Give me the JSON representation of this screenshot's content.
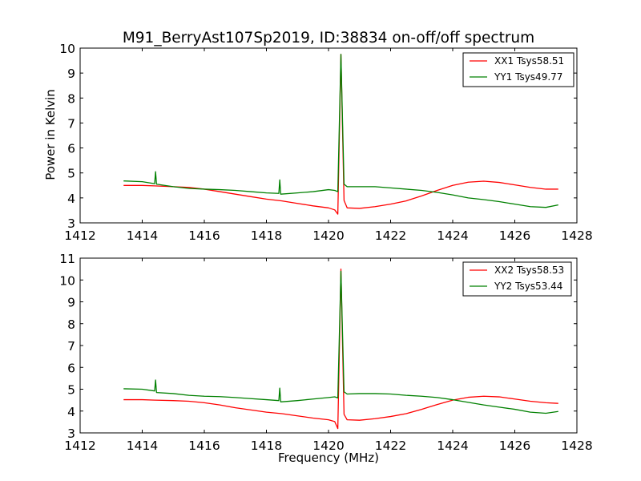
{
  "title": "M91_BerryAst107Sp2019, ID:38834 on-off/off spectrum",
  "ylabel": "Power in Kelvin",
  "chart_data": [
    {
      "type": "line",
      "xlabel": "",
      "ylabel": "Power in Kelvin",
      "xlim": [
        1412,
        1428
      ],
      "ylim": [
        3,
        10
      ],
      "xticks": [
        1412,
        1414,
        1416,
        1418,
        1420,
        1422,
        1424,
        1426,
        1428
      ],
      "yticks": [
        3,
        4,
        5,
        6,
        7,
        8,
        9,
        10
      ],
      "legend": "top-right",
      "series": [
        {
          "name": "XX1 Tsys58.51",
          "color": "#ff0000",
          "x": [
            1413.4,
            1414.0,
            1414.4,
            1415.0,
            1415.5,
            1416.0,
            1416.5,
            1417.0,
            1417.5,
            1418.0,
            1418.5,
            1419.0,
            1419.5,
            1420.0,
            1420.2,
            1420.3,
            1420.4,
            1420.5,
            1420.6,
            1421.0,
            1421.5,
            1422.0,
            1422.5,
            1423.0,
            1423.5,
            1424.0,
            1424.5,
            1425.0,
            1425.5,
            1426.0,
            1426.5,
            1427.0,
            1427.4
          ],
          "values": [
            4.5,
            4.5,
            4.48,
            4.45,
            4.42,
            4.35,
            4.25,
            4.15,
            4.05,
            3.95,
            3.88,
            3.78,
            3.68,
            3.6,
            3.52,
            3.35,
            9.75,
            3.9,
            3.6,
            3.58,
            3.65,
            3.75,
            3.88,
            4.08,
            4.3,
            4.5,
            4.63,
            4.67,
            4.62,
            4.52,
            4.42,
            4.35,
            4.35
          ]
        },
        {
          "name": "YY1 Tsys49.77",
          "color": "#008000",
          "x": [
            1413.4,
            1414.0,
            1414.4,
            1414.43,
            1414.46,
            1415.0,
            1415.5,
            1416.0,
            1416.5,
            1417.0,
            1417.5,
            1418.0,
            1418.4,
            1418.43,
            1418.46,
            1419.0,
            1419.5,
            1420.0,
            1420.2,
            1420.3,
            1420.4,
            1420.5,
            1420.6,
            1421.0,
            1421.5,
            1422.0,
            1422.5,
            1423.0,
            1423.5,
            1424.0,
            1424.5,
            1425.0,
            1425.5,
            1426.0,
            1426.5,
            1427.0,
            1427.4
          ],
          "values": [
            4.68,
            4.65,
            4.57,
            5.05,
            4.55,
            4.45,
            4.38,
            4.35,
            4.33,
            4.3,
            4.25,
            4.2,
            4.18,
            4.72,
            4.15,
            4.2,
            4.25,
            4.33,
            4.3,
            4.25,
            9.75,
            4.55,
            4.45,
            4.45,
            4.45,
            4.4,
            4.35,
            4.3,
            4.22,
            4.12,
            4.0,
            3.93,
            3.85,
            3.75,
            3.65,
            3.62,
            3.72
          ]
        }
      ]
    },
    {
      "type": "line",
      "xlabel": "Frequency (MHz)",
      "ylabel": "",
      "xlim": [
        1412,
        1428
      ],
      "ylim": [
        3,
        11
      ],
      "xticks": [
        1412,
        1414,
        1416,
        1418,
        1420,
        1422,
        1424,
        1426,
        1428
      ],
      "yticks": [
        3,
        4,
        5,
        6,
        7,
        8,
        9,
        10,
        11
      ],
      "legend": "top-right",
      "series": [
        {
          "name": "XX2 Tsys58.53",
          "color": "#ff0000",
          "x": [
            1413.4,
            1414.0,
            1414.4,
            1415.0,
            1415.5,
            1416.0,
            1416.5,
            1417.0,
            1417.5,
            1418.0,
            1418.5,
            1419.0,
            1419.5,
            1420.0,
            1420.2,
            1420.3,
            1420.4,
            1420.5,
            1420.6,
            1421.0,
            1421.5,
            1422.0,
            1422.5,
            1423.0,
            1423.5,
            1424.0,
            1424.5,
            1425.0,
            1425.5,
            1426.0,
            1426.5,
            1427.0,
            1427.4
          ],
          "values": [
            4.52,
            4.52,
            4.5,
            4.48,
            4.45,
            4.38,
            4.28,
            4.15,
            4.05,
            3.95,
            3.88,
            3.78,
            3.68,
            3.6,
            3.52,
            3.2,
            10.5,
            3.85,
            3.6,
            3.58,
            3.65,
            3.75,
            3.88,
            4.08,
            4.3,
            4.5,
            4.63,
            4.68,
            4.65,
            4.55,
            4.45,
            4.38,
            4.35
          ]
        },
        {
          "name": "YY2 Tsys53.44",
          "color": "#008000",
          "x": [
            1413.4,
            1414.0,
            1414.4,
            1414.43,
            1414.46,
            1415.0,
            1415.5,
            1416.0,
            1416.5,
            1417.0,
            1417.5,
            1418.0,
            1418.4,
            1418.43,
            1418.46,
            1419.0,
            1419.5,
            1420.0,
            1420.2,
            1420.3,
            1420.4,
            1420.5,
            1420.6,
            1421.0,
            1421.5,
            1422.0,
            1422.5,
            1423.0,
            1423.5,
            1424.0,
            1424.5,
            1425.0,
            1425.5,
            1426.0,
            1426.5,
            1427.0,
            1427.4
          ],
          "values": [
            5.02,
            5.0,
            4.92,
            5.42,
            4.85,
            4.8,
            4.72,
            4.68,
            4.66,
            4.62,
            4.57,
            4.52,
            4.48,
            5.05,
            4.42,
            4.48,
            4.55,
            4.62,
            4.65,
            4.6,
            10.4,
            4.88,
            4.78,
            4.8,
            4.8,
            4.78,
            4.72,
            4.68,
            4.62,
            4.52,
            4.4,
            4.28,
            4.18,
            4.08,
            3.95,
            3.9,
            3.98
          ]
        }
      ]
    }
  ]
}
